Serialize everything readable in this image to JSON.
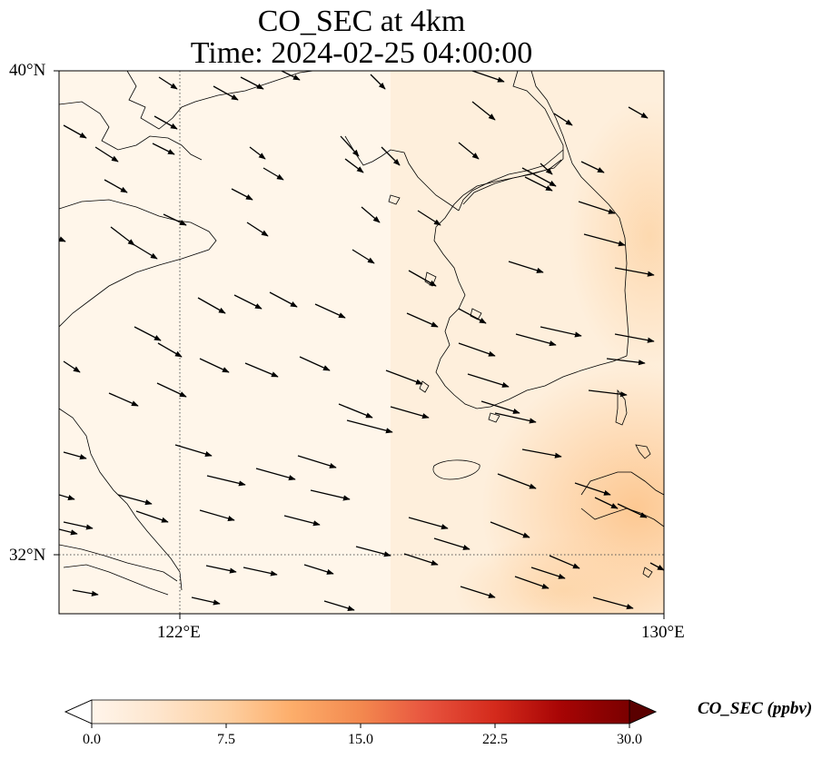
{
  "title": {
    "line1": "CO_SEC at 4km",
    "line2": "Time: 2024-02-25 04:00:00"
  },
  "map": {
    "lon_range": [
      120.4,
      130.0
    ],
    "lat_range": [
      31.0,
      40.0
    ],
    "gridlines": {
      "lons": [
        122,
        130
      ],
      "lats": [
        32,
        40
      ],
      "style": "dotted"
    },
    "lat_ticks": [
      {
        "value": 40,
        "label": "40°N"
      },
      {
        "value": 32,
        "label": "32°N"
      }
    ],
    "lon_ticks": [
      {
        "value": 122,
        "label": "122°E"
      },
      {
        "value": 130,
        "label": "130°E"
      }
    ],
    "field_description_colors": {
      "low": "#fff5eb",
      "mid": "#fdd9ad",
      "high": "#fdbe85"
    },
    "wind_direction": "west-northwest to east-southeast (winds blowing toward ESE)",
    "coastline_color": "#000000"
  },
  "colorbar": {
    "label": "CO_SEC (ppbv)",
    "min": 0.0,
    "max": 30.0,
    "extend": "both",
    "ticks": [
      "0.0",
      "7.5",
      "15.0",
      "22.5",
      "30.0"
    ],
    "tick_values": [
      0.0,
      7.5,
      15.0,
      22.5,
      30.0
    ],
    "colormap": "Oranges-to-darkred",
    "colors": [
      "#fff5eb",
      "#fee6ce",
      "#fdd0a2",
      "#fdae6b",
      "#fd8d3c",
      "#f16913",
      "#d94801",
      "#b30000",
      "#7f0000",
      "#5a0000"
    ]
  }
}
